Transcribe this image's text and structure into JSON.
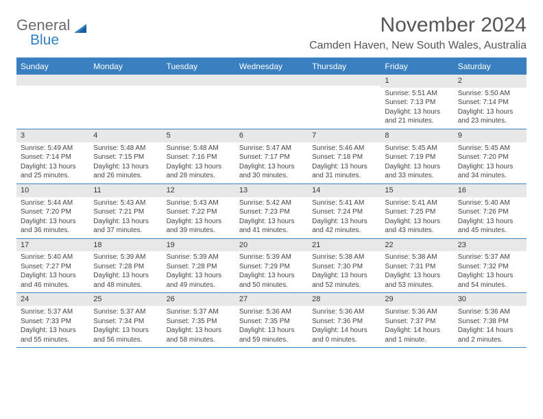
{
  "logo": {
    "text_gray": "General",
    "text_blue": "Blue"
  },
  "title": "November 2024",
  "location": "Camden Haven, New South Wales, Australia",
  "colors": {
    "header_bg": "#3a80c0",
    "header_text": "#ffffff",
    "daynum_bg": "#e8e8e8",
    "rule": "#3a80c0",
    "body_text": "#444444",
    "title_text": "#555555",
    "logo_gray": "#6b6b6b",
    "logo_blue": "#2f7fc2"
  },
  "day_headers": [
    "Sunday",
    "Monday",
    "Tuesday",
    "Wednesday",
    "Thursday",
    "Friday",
    "Saturday"
  ],
  "weeks": [
    [
      {
        "num": "",
        "lines": []
      },
      {
        "num": "",
        "lines": []
      },
      {
        "num": "",
        "lines": []
      },
      {
        "num": "",
        "lines": []
      },
      {
        "num": "",
        "lines": []
      },
      {
        "num": "1",
        "lines": [
          "Sunrise: 5:51 AM",
          "Sunset: 7:13 PM",
          "Daylight: 13 hours and 21 minutes."
        ]
      },
      {
        "num": "2",
        "lines": [
          "Sunrise: 5:50 AM",
          "Sunset: 7:14 PM",
          "Daylight: 13 hours and 23 minutes."
        ]
      }
    ],
    [
      {
        "num": "3",
        "lines": [
          "Sunrise: 5:49 AM",
          "Sunset: 7:14 PM",
          "Daylight: 13 hours and 25 minutes."
        ]
      },
      {
        "num": "4",
        "lines": [
          "Sunrise: 5:48 AM",
          "Sunset: 7:15 PM",
          "Daylight: 13 hours and 26 minutes."
        ]
      },
      {
        "num": "5",
        "lines": [
          "Sunrise: 5:48 AM",
          "Sunset: 7:16 PM",
          "Daylight: 13 hours and 28 minutes."
        ]
      },
      {
        "num": "6",
        "lines": [
          "Sunrise: 5:47 AM",
          "Sunset: 7:17 PM",
          "Daylight: 13 hours and 30 minutes."
        ]
      },
      {
        "num": "7",
        "lines": [
          "Sunrise: 5:46 AM",
          "Sunset: 7:18 PM",
          "Daylight: 13 hours and 31 minutes."
        ]
      },
      {
        "num": "8",
        "lines": [
          "Sunrise: 5:45 AM",
          "Sunset: 7:19 PM",
          "Daylight: 13 hours and 33 minutes."
        ]
      },
      {
        "num": "9",
        "lines": [
          "Sunrise: 5:45 AM",
          "Sunset: 7:20 PM",
          "Daylight: 13 hours and 34 minutes."
        ]
      }
    ],
    [
      {
        "num": "10",
        "lines": [
          "Sunrise: 5:44 AM",
          "Sunset: 7:20 PM",
          "Daylight: 13 hours and 36 minutes."
        ]
      },
      {
        "num": "11",
        "lines": [
          "Sunrise: 5:43 AM",
          "Sunset: 7:21 PM",
          "Daylight: 13 hours and 37 minutes."
        ]
      },
      {
        "num": "12",
        "lines": [
          "Sunrise: 5:43 AM",
          "Sunset: 7:22 PM",
          "Daylight: 13 hours and 39 minutes."
        ]
      },
      {
        "num": "13",
        "lines": [
          "Sunrise: 5:42 AM",
          "Sunset: 7:23 PM",
          "Daylight: 13 hours and 41 minutes."
        ]
      },
      {
        "num": "14",
        "lines": [
          "Sunrise: 5:41 AM",
          "Sunset: 7:24 PM",
          "Daylight: 13 hours and 42 minutes."
        ]
      },
      {
        "num": "15",
        "lines": [
          "Sunrise: 5:41 AM",
          "Sunset: 7:25 PM",
          "Daylight: 13 hours and 43 minutes."
        ]
      },
      {
        "num": "16",
        "lines": [
          "Sunrise: 5:40 AM",
          "Sunset: 7:26 PM",
          "Daylight: 13 hours and 45 minutes."
        ]
      }
    ],
    [
      {
        "num": "17",
        "lines": [
          "Sunrise: 5:40 AM",
          "Sunset: 7:27 PM",
          "Daylight: 13 hours and 46 minutes."
        ]
      },
      {
        "num": "18",
        "lines": [
          "Sunrise: 5:39 AM",
          "Sunset: 7:28 PM",
          "Daylight: 13 hours and 48 minutes."
        ]
      },
      {
        "num": "19",
        "lines": [
          "Sunrise: 5:39 AM",
          "Sunset: 7:28 PM",
          "Daylight: 13 hours and 49 minutes."
        ]
      },
      {
        "num": "20",
        "lines": [
          "Sunrise: 5:39 AM",
          "Sunset: 7:29 PM",
          "Daylight: 13 hours and 50 minutes."
        ]
      },
      {
        "num": "21",
        "lines": [
          "Sunrise: 5:38 AM",
          "Sunset: 7:30 PM",
          "Daylight: 13 hours and 52 minutes."
        ]
      },
      {
        "num": "22",
        "lines": [
          "Sunrise: 5:38 AM",
          "Sunset: 7:31 PM",
          "Daylight: 13 hours and 53 minutes."
        ]
      },
      {
        "num": "23",
        "lines": [
          "Sunrise: 5:37 AM",
          "Sunset: 7:32 PM",
          "Daylight: 13 hours and 54 minutes."
        ]
      }
    ],
    [
      {
        "num": "24",
        "lines": [
          "Sunrise: 5:37 AM",
          "Sunset: 7:33 PM",
          "Daylight: 13 hours and 55 minutes."
        ]
      },
      {
        "num": "25",
        "lines": [
          "Sunrise: 5:37 AM",
          "Sunset: 7:34 PM",
          "Daylight: 13 hours and 56 minutes."
        ]
      },
      {
        "num": "26",
        "lines": [
          "Sunrise: 5:37 AM",
          "Sunset: 7:35 PM",
          "Daylight: 13 hours and 58 minutes."
        ]
      },
      {
        "num": "27",
        "lines": [
          "Sunrise: 5:36 AM",
          "Sunset: 7:35 PM",
          "Daylight: 13 hours and 59 minutes."
        ]
      },
      {
        "num": "28",
        "lines": [
          "Sunrise: 5:36 AM",
          "Sunset: 7:36 PM",
          "Daylight: 14 hours and 0 minutes."
        ]
      },
      {
        "num": "29",
        "lines": [
          "Sunrise: 5:36 AM",
          "Sunset: 7:37 PM",
          "Daylight: 14 hours and 1 minute."
        ]
      },
      {
        "num": "30",
        "lines": [
          "Sunrise: 5:36 AM",
          "Sunset: 7:38 PM",
          "Daylight: 14 hours and 2 minutes."
        ]
      }
    ]
  ]
}
